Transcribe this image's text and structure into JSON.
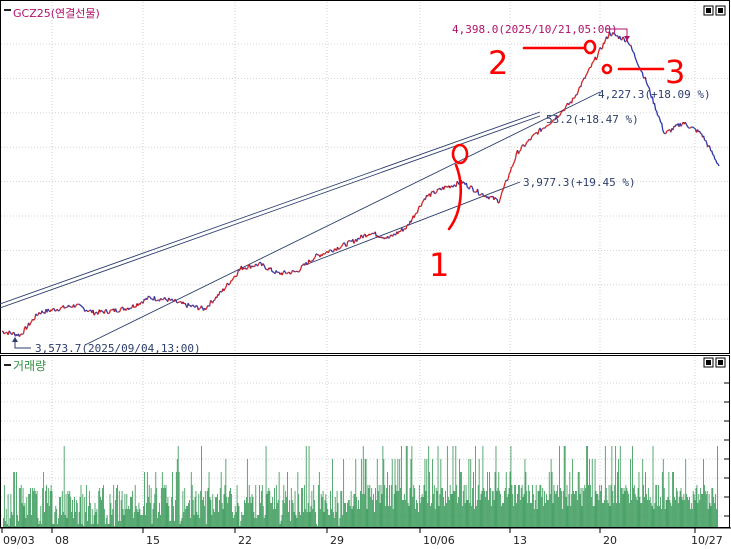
{
  "price_panel": {
    "title": "GCZ25(연결선물)",
    "high_annotation": "4,398.0(2025/10/21,05:00)",
    "low_annotation": "3,573.7(2025/09/04,13:00)",
    "channel_labels": [
      "4,227.3(+18.09 %)",
      "53.2(+18.47 %)",
      "3,977.3(+19.45 %)"
    ]
  },
  "volume_panel": {
    "title": "거래량"
  },
  "window_buttons": {
    "restore_symbol": "◘",
    "close_symbol": "▪"
  },
  "x_axis_labels": [
    "09/03",
    "08",
    "15",
    "22",
    "29",
    "10/06",
    "13",
    "20",
    "10/27"
  ],
  "handwritten_marks": [
    "1",
    "2",
    "3"
  ],
  "colors": {
    "price_up": "#d42020",
    "price_down": "#2a35a8",
    "volume": "#3a9a5a",
    "trendline": "#2c3e6e",
    "annotation": "#b0106a",
    "ink": "#ff0000"
  },
  "chart_data": [
    {
      "type": "line",
      "series": [
        {
          "x": [
            "09/03",
            "09/04",
            "09/05",
            "09/08",
            "09/09",
            "09/10",
            "09/11",
            "09/12",
            "09/15",
            "09/16",
            "09/17",
            "09/18",
            "09/19",
            "09/22",
            "09/23",
            "09/24",
            "09/25",
            "09/26",
            "09/29",
            "09/30",
            "10/01",
            "10/02",
            "10/03",
            "10/06",
            "10/07",
            "10/08",
            "10/09",
            "10/10",
            "10/13",
            "10/14",
            "10/15",
            "10/16",
            "10/17",
            "10/20",
            "10/21",
            "10/22",
            "10/23",
            "10/24",
            "10/27",
            "10/28"
          ],
          "values": [
            3590,
            3580,
            3640,
            3650,
            3660,
            3640,
            3645,
            3655,
            3680,
            3675,
            3660,
            3650,
            3700,
            3760,
            3770,
            3745,
            3750,
            3790,
            3810,
            3830,
            3855,
            3840,
            3870,
            3950,
            3975,
            3990,
            3960,
            3940,
            4070,
            4120,
            4160,
            4210,
            4300,
            4390,
            4370,
            4260,
            4120,
            4150,
            4120,
            4030
          ]
        }
      ],
      "high": 4398.0,
      "low": 3573.7,
      "xtick_labels": [
        "09/03",
        "08",
        "15",
        "22",
        "29",
        "10/06",
        "13",
        "20",
        "10/27"
      ],
      "title": "GCZ25(연결선물)",
      "grid": true
    },
    {
      "type": "bar",
      "series": [
        {
          "values": [
            3,
            14,
            2,
            6,
            1,
            11,
            0,
            3,
            11,
            5,
            4,
            15,
            15,
            0,
            15,
            4,
            2,
            13,
            13,
            14,
            8,
            13,
            7,
            8,
            3,
            10,
            4,
            11,
            11,
            13,
            4,
            13,
            12,
            13,
            12,
            11,
            12,
            3,
            1,
            2,
            7,
            1,
            13,
            15,
            5,
            12,
            14,
            8,
            13,
            7,
            12,
            14,
            12,
            1,
            1,
            5,
            7,
            6,
            1,
            3,
            10,
            10,
            4,
            12,
            5,
            17,
            4,
            11,
            3,
            12,
            11,
            12,
            10,
            5,
            9,
            3,
            10,
            5,
            9,
            8,
            1,
            5,
            10,
            14,
            1,
            11,
            0,
            10,
            5,
            14,
            2,
            7,
            12,
            8,
            1,
            6,
            1,
            4,
            8,
            5,
            6,
            1,
            12,
            13,
            10,
            9,
            13,
            14,
            6,
            1,
            3,
            4,
            1,
            1,
            11,
            8,
            4,
            6,
            14,
            0,
            9,
            13,
            14,
            2,
            12,
            2,
            9,
            12,
            6,
            4,
            11,
            6,
            11,
            6,
            7,
            6,
            10,
            10,
            12,
            3,
            5,
            14,
            7,
            6,
            5,
            8,
            6,
            4,
            4,
            4,
            7,
            15,
            4,
            8,
            15,
            10,
            14,
            8,
            13,
            1,
            6,
            8,
            11,
            15,
            13,
            3,
            5,
            8,
            4,
            13,
            15,
            13,
            14,
            13,
            14,
            8,
            10,
            7,
            2,
            2,
            10,
            15,
            7,
            2,
            9,
            15,
            16,
            17,
            15,
            1,
            2,
            3,
            12,
            5,
            13,
            6,
            7,
            7,
            8,
            9,
            3,
            15,
            14,
            9,
            4,
            10,
            12,
            5,
            4,
            11,
            3,
            12,
            17,
            9,
            10,
            7,
            12,
            1,
            12,
            13,
            15,
            10,
            9,
            4,
            11,
            6,
            5,
            10,
            10,
            11,
            5,
            9,
            13,
            15,
            8,
            6,
            11,
            14,
            16,
            10,
            8,
            10,
            12,
            13,
            11,
            5,
            3,
            4,
            7,
            5,
            14,
            8,
            7,
            0,
            2,
            5,
            4,
            4,
            9,
            8,
            10,
            16,
            8,
            14,
            10,
            8,
            11,
            10,
            5,
            3,
            14,
            3,
            4,
            4,
            14,
            8,
            12,
            14,
            7,
            3,
            4,
            17,
            11,
            12,
            13,
            12,
            8,
            8,
            10,
            6,
            13,
            6,
            14,
            8,
            9,
            15,
            1,
            2,
            4,
            9,
            14,
            8,
            12,
            10,
            15,
            5,
            9,
            2,
            13,
            9,
            8,
            5,
            12,
            4,
            3,
            15,
            11,
            5,
            4,
            13,
            13,
            5,
            14,
            6,
            17,
            5,
            8,
            17,
            5,
            7,
            12,
            6,
            14,
            9,
            5,
            1,
            0,
            14,
            15,
            6,
            11,
            10,
            12,
            5,
            9,
            11,
            8,
            6,
            4,
            4,
            12,
            6,
            16,
            5,
            3,
            10,
            5,
            12,
            8,
            0,
            3,
            12,
            12,
            4,
            16,
            8,
            8,
            5,
            8,
            9,
            9,
            7,
            12,
            6,
            7,
            11,
            11,
            16,
            10,
            6,
            9,
            6,
            12,
            16,
            11,
            17,
            11,
            16,
            16,
            6,
            14,
            13,
            14,
            10,
            13,
            9,
            11,
            5,
            13,
            9,
            16,
            12,
            14,
            8,
            14,
            11,
            17,
            16,
            14,
            7,
            13,
            15,
            7,
            14,
            7,
            14,
            16,
            6,
            11,
            16,
            14,
            12,
            16,
            12,
            16,
            13,
            17,
            9,
            9,
            11,
            9,
            17,
            17,
            8,
            7,
            13,
            16,
            17,
            10,
            14,
            13,
            6,
            9,
            8,
            5,
            14,
            8,
            10,
            11,
            10,
            14,
            16,
            12,
            16,
            8,
            17,
            15,
            7,
            8,
            16,
            11,
            14,
            6,
            13,
            12,
            17,
            7,
            11,
            16,
            13,
            13,
            10,
            7,
            12,
            8,
            17,
            10,
            9,
            14,
            11,
            11,
            17,
            12,
            12,
            17,
            14,
            8,
            10,
            16,
            15,
            15,
            7,
            12,
            14,
            8,
            14,
            9,
            9,
            16,
            8,
            16,
            7,
            13,
            15,
            6,
            17,
            7,
            9,
            14,
            16,
            9,
            11,
            12,
            17,
            13,
            12,
            10,
            12,
            15,
            9,
            15,
            13,
            7,
            12,
            12,
            9,
            15,
            17,
            12,
            13,
            15,
            12,
            11,
            7,
            8,
            8,
            12,
            13,
            15,
            10,
            11,
            13,
            15,
            17,
            14,
            11,
            7,
            14,
            14,
            8,
            11,
            14,
            14,
            9,
            13,
            14,
            10,
            11,
            16,
            15,
            12,
            8,
            14,
            12,
            8,
            8,
            14,
            11,
            6,
            9,
            14,
            6,
            12,
            12,
            14,
            14,
            10,
            13,
            7,
            12,
            8,
            11,
            9,
            9,
            15,
            11,
            16,
            15,
            8,
            14,
            12,
            11,
            12,
            14,
            10,
            17,
            13,
            12,
            6,
            12,
            17,
            17,
            10,
            14,
            7,
            11,
            15,
            7,
            11,
            16,
            12,
            11,
            12,
            12,
            9,
            15,
            15,
            11,
            13,
            7,
            13,
            12,
            14,
            13,
            17,
            17,
            14,
            16,
            14,
            10,
            16,
            7,
            7,
            16,
            12,
            11,
            11,
            9,
            14,
            12,
            14,
            8,
            8,
            9,
            17,
            13,
            9,
            8,
            14,
            7,
            14,
            17,
            12,
            8,
            14,
            17,
            8,
            15,
            16,
            8,
            17,
            13,
            13,
            11,
            13,
            12,
            14,
            13,
            12,
            11,
            8,
            16,
            9,
            17,
            13,
            14,
            11,
            10,
            9,
            13,
            15,
            10,
            8,
            8,
            16,
            14,
            10,
            15,
            11,
            9,
            13,
            9,
            10,
            8,
            7,
            17,
            6,
            8,
            14,
            14,
            7,
            14,
            7,
            10,
            6,
            15,
            16,
            13,
            6,
            9,
            9,
            10,
            15,
            9,
            8,
            7,
            15,
            15,
            10,
            9,
            13,
            12,
            8,
            10,
            12,
            13,
            10,
            9,
            11,
            9,
            16,
            11,
            10,
            9,
            10,
            6,
            8,
            6,
            12,
            11,
            9,
            13,
            14,
            8,
            11,
            9,
            13,
            11,
            11,
            16,
            14,
            12,
            11,
            12,
            6,
            11,
            8,
            7,
            13,
            13,
            10,
            8,
            11,
            6,
            17
          ]
        }
      ],
      "title": "거래량",
      "grid": true
    }
  ]
}
